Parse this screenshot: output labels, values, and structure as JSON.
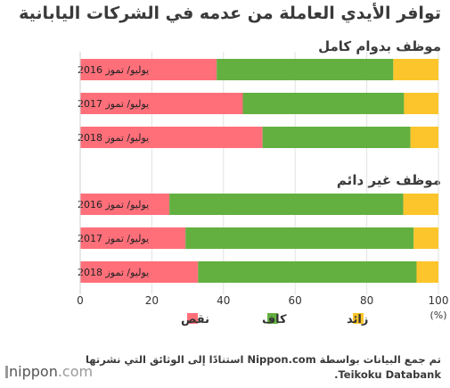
{
  "title": "توافر الأيدي العاملة من عدمه في الشركات اليابانية",
  "source_lines": [
    "تم جمع البيانات بواسطة Nippon.com استنادًا إلى الوثائق التي نشرتها",
    "Teikoku Databank."
  ],
  "logo": {
    "prefix": "nippon",
    "suffix": ".com"
  },
  "chart_data": {
    "type": "bar",
    "orientation": "horizontal",
    "stacked": true,
    "xlim": [
      0,
      100
    ],
    "xticks": [
      "0",
      "20",
      "40",
      "60",
      "80",
      "100"
    ],
    "unit_label": "(%)",
    "grid": true,
    "legend_position": "bottom",
    "series": [
      {
        "name": "نقص",
        "color": "#ff6f7a"
      },
      {
        "name": "كاف",
        "color": "#63b040"
      },
      {
        "name": "زائد",
        "color": "#fcc52b"
      }
    ],
    "groups": [
      {
        "name": "موظف بدوام كامل",
        "categories": [
          "يوليو/ تموز 2016",
          "يوليو/ تموز 2017",
          "يوليو/ تموز 2018"
        ],
        "values": [
          [
            38.1,
            49.3,
            12.6
          ],
          [
            45.4,
            45.0,
            9.6
          ],
          [
            50.9,
            41.3,
            7.8
          ]
        ]
      },
      {
        "name": "موظف غير دائم",
        "categories": [
          "يوليو/ تموز 2016",
          "يوليو/ تموز 2017",
          "يوليو/ تموز 2018"
        ],
        "values": [
          [
            24.9,
            65.3,
            9.8
          ],
          [
            29.4,
            63.7,
            6.9
          ],
          [
            32.9,
            61.0,
            6.1
          ]
        ]
      }
    ]
  }
}
